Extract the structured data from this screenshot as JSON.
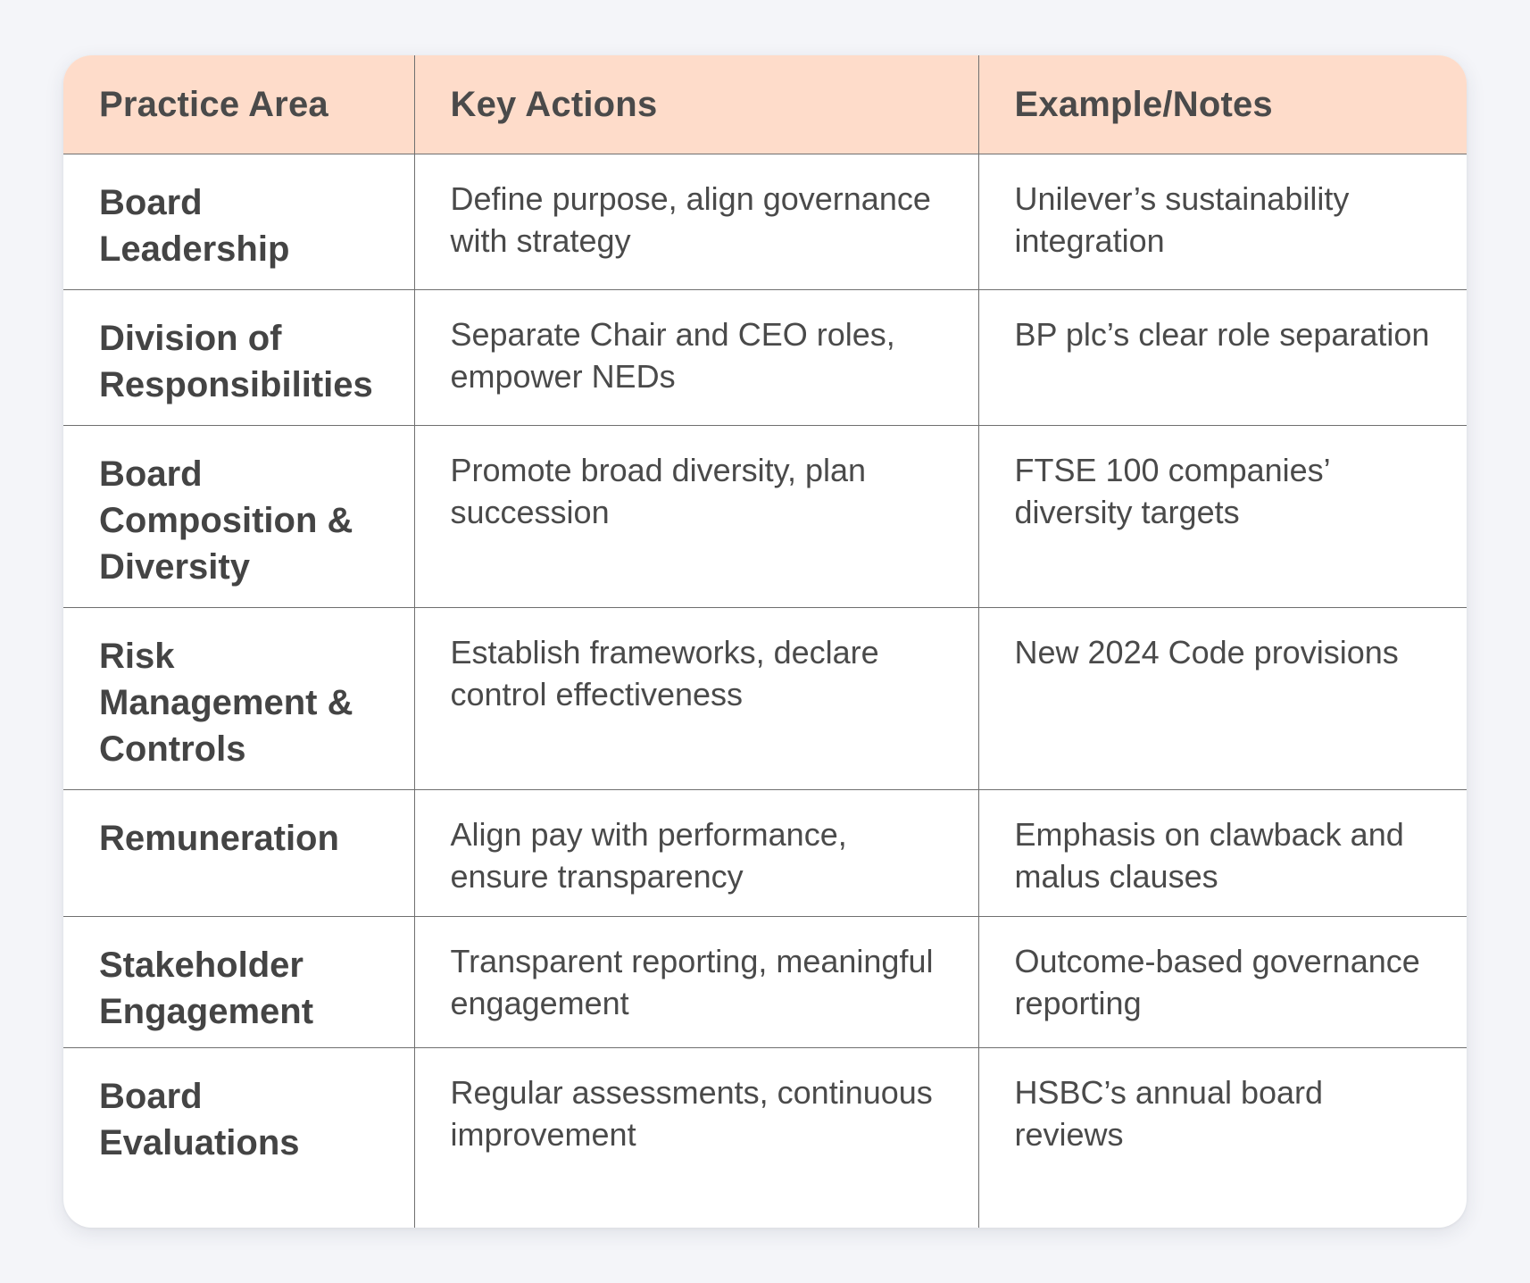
{
  "table": {
    "headers": [
      "Practice Area",
      "Key Actions",
      "Example/Notes"
    ],
    "rows": [
      {
        "area": "Board Leadership",
        "actions": "Define purpose, align governance with strategy",
        "notes": "Unilever’s sustainability integration"
      },
      {
        "area": "Division of Responsibilities",
        "actions": "Separate Chair and CEO roles, empower NEDs",
        "notes": "BP plc’s clear role separation"
      },
      {
        "area": "Board Composition & Diversity",
        "actions": "Promote broad diversity, plan succession",
        "notes": "FTSE 100 companies’ diversity targets"
      },
      {
        "area": "Risk Management & Controls",
        "actions": "Establish frameworks, declare control effectiveness",
        "notes": "New 2024 Code provisions"
      },
      {
        "area": "Remuneration",
        "actions": "Align pay with performance, ensure transparency",
        "notes": "Emphasis on clawback and malus clauses"
      },
      {
        "area": "Stakeholder Engagement",
        "actions": "Transparent reporting, meaningful engagement",
        "notes": "Outcome-based governance reporting"
      },
      {
        "area": "Board Evaluations",
        "actions": "Regular assessments, continuous improvement",
        "notes": "HSBC’s annual board reviews"
      }
    ]
  }
}
